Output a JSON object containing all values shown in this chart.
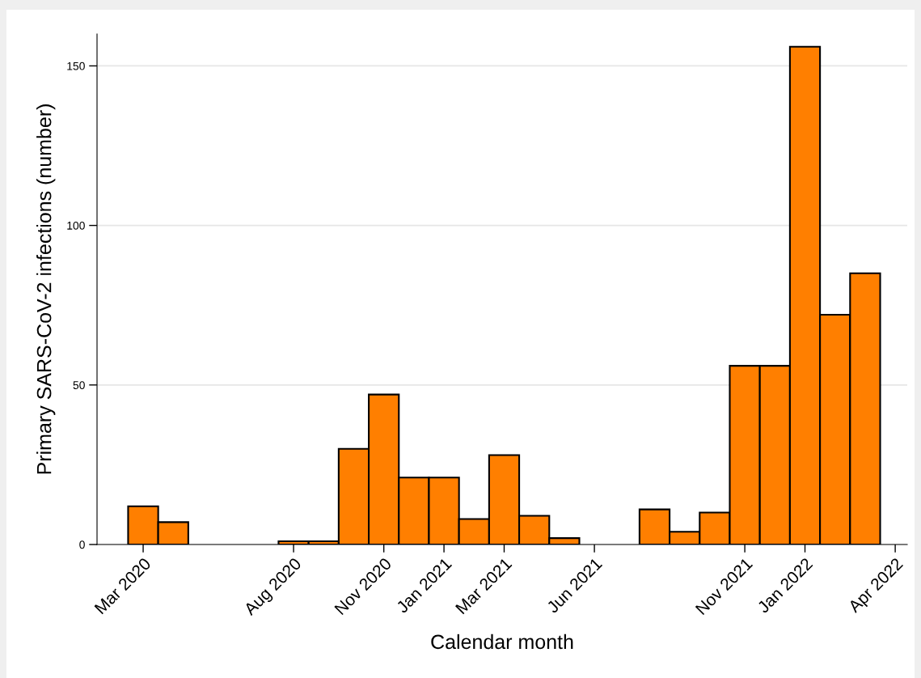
{
  "chart_data": {
    "type": "bar",
    "xlabel": "Calendar month",
    "ylabel": "Primary SARS-CoV-2 infections (number)",
    "x": [
      "2020-03",
      "2020-04",
      "2020-08",
      "2020-09",
      "2020-10",
      "2020-11",
      "2020-12",
      "2021-01",
      "2021-02",
      "2021-03",
      "2021-04",
      "2021-05",
      "2021-08",
      "2021-09",
      "2021-10",
      "2021-11",
      "2021-12",
      "2022-01",
      "2022-02",
      "2022-03"
    ],
    "values": [
      12,
      7,
      1,
      1,
      30,
      47,
      21,
      21,
      8,
      28,
      9,
      2,
      11,
      4,
      10,
      56,
      56,
      156,
      72,
      85
    ],
    "color": "#ff7f00",
    "xlim": [
      "2020-01-15",
      "2022-04-13"
    ],
    "xticks": [
      {
        "value": "2020-03",
        "label": "Mar 2020"
      },
      {
        "value": "2020-08",
        "label": "Aug 2020"
      },
      {
        "value": "2020-11",
        "label": "Nov 2020"
      },
      {
        "value": "2021-01",
        "label": "Jan 2021"
      },
      {
        "value": "2021-03",
        "label": "Mar 2021"
      },
      {
        "value": "2021-06",
        "label": "Jun 2021"
      },
      {
        "value": "2021-11",
        "label": "Nov 2021"
      },
      {
        "value": "2022-01",
        "label": "Jan 2022"
      },
      {
        "value": "2022-04",
        "label": "Apr 2022"
      }
    ],
    "ylim": [
      0,
      160
    ],
    "yticks": [
      0,
      50,
      100,
      150
    ],
    "grid": "y"
  }
}
